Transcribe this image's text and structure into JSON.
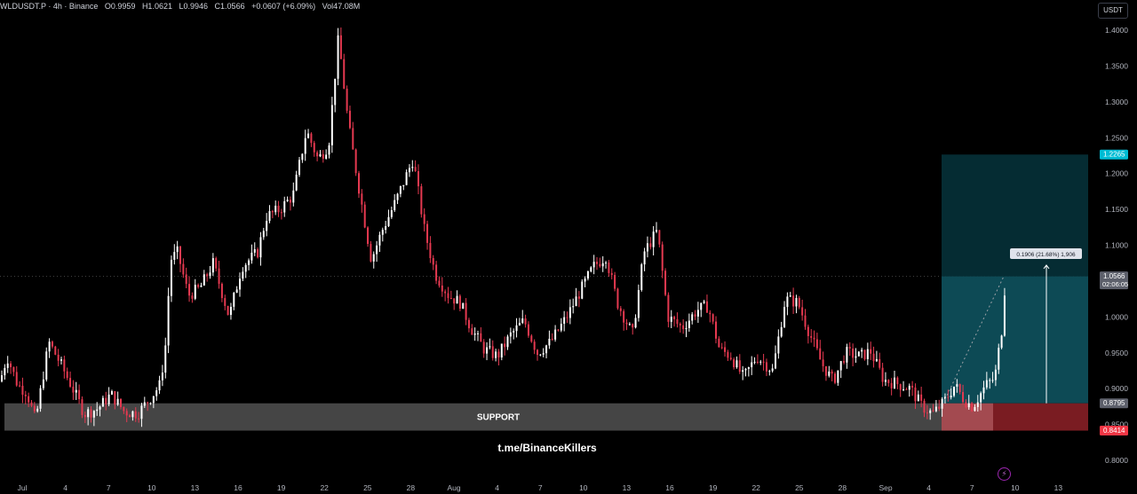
{
  "header": {
    "symbol": "WLDUSDT.P · 4h · Binance",
    "open": "O0.9959",
    "high": "H1.0621",
    "low": "L0.9946",
    "close": "C1.0566",
    "change": "+0.0607 (+6.09%)",
    "volume": "Vol47.08M"
  },
  "currency_button": "USDT",
  "support_label": "SUPPORT",
  "watermark": "t.me/BinanceKillers",
  "measure_label": "0.1906 (21.68%) 1,906",
  "countdown": "02:06:05",
  "flash_icon": "⚡",
  "colors": {
    "up": "#ffffff",
    "down": "#e53950",
    "profit_zone": "#0d4a55",
    "profit_zone_upper": "#052c33",
    "loss_zone": "#7a1c22",
    "support_band": "#4d4d4d",
    "target_tag": "#00bcd4",
    "stop_tag": "#f23645",
    "price_tag": "#5d606b"
  },
  "chart_data": {
    "type": "candlestick",
    "ylim": [
      0.7905,
      1.4055
    ],
    "y_ticks": [
      "1.4000",
      "1.3500",
      "1.3000",
      "1.2500",
      "1.2000",
      "1.1500",
      "1.1000",
      "1.0500",
      "1.0000",
      "0.9500",
      "0.9000",
      "0.8500",
      "0.8000"
    ],
    "x_ticks": [
      "Jul",
      "4",
      "7",
      "10",
      "13",
      "16",
      "19",
      "22",
      "25",
      "28",
      "Aug",
      "4",
      "7",
      "10",
      "13",
      "16",
      "19",
      "22",
      "25",
      "28",
      "Sep",
      "4",
      "7",
      "10",
      "13"
    ],
    "price_path": [
      [
        0,
        0.91
      ],
      [
        8,
        0.945
      ],
      [
        20,
        0.905
      ],
      [
        30,
        0.895
      ],
      [
        40,
        0.855
      ],
      [
        55,
        0.965
      ],
      [
        68,
        0.935
      ],
      [
        80,
        0.905
      ],
      [
        95,
        0.865
      ],
      [
        110,
        0.872
      ],
      [
        125,
        0.892
      ],
      [
        140,
        0.868
      ],
      [
        155,
        0.865
      ],
      [
        168,
        0.885
      ],
      [
        180,
        0.905
      ],
      [
        186,
        0.955
      ],
      [
        192,
        1.08
      ],
      [
        200,
        1.09
      ],
      [
        212,
        1.03
      ],
      [
        225,
        1.04
      ],
      [
        240,
        1.075
      ],
      [
        258,
        1.0
      ],
      [
        272,
        1.07
      ],
      [
        290,
        1.09
      ],
      [
        300,
        1.14
      ],
      [
        315,
        1.15
      ],
      [
        330,
        1.17
      ],
      [
        345,
        1.26
      ],
      [
        358,
        1.22
      ],
      [
        370,
        1.24
      ],
      [
        381,
        1.39
      ],
      [
        392,
        1.27
      ],
      [
        404,
        1.18
      ],
      [
        418,
        1.08
      ],
      [
        430,
        1.12
      ],
      [
        445,
        1.16
      ],
      [
        465,
        1.22
      ],
      [
        478,
        1.12
      ],
      [
        490,
        1.06
      ],
      [
        505,
        1.03
      ],
      [
        518,
        1.02
      ],
      [
        530,
        0.985
      ],
      [
        545,
        0.955
      ],
      [
        560,
        0.945
      ],
      [
        575,
        0.975
      ],
      [
        590,
        0.995
      ],
      [
        605,
        0.95
      ],
      [
        620,
        0.965
      ],
      [
        638,
        1.0
      ],
      [
        655,
        1.04
      ],
      [
        668,
        1.07
      ],
      [
        682,
        1.085
      ],
      [
        695,
        1.02
      ],
      [
        712,
        0.975
      ],
      [
        725,
        1.09
      ],
      [
        740,
        1.12
      ],
      [
        752,
        1.0
      ],
      [
        768,
        0.985
      ],
      [
        785,
        1.01
      ],
      [
        797,
        1.015
      ],
      [
        810,
        0.955
      ],
      [
        823,
        0.945
      ],
      [
        837,
        0.915
      ],
      [
        852,
        0.945
      ],
      [
        870,
        0.925
      ],
      [
        884,
        1.025
      ],
      [
        898,
        1.02
      ],
      [
        912,
        0.975
      ],
      [
        925,
        0.935
      ],
      [
        938,
        0.91
      ],
      [
        952,
        0.95
      ],
      [
        968,
        0.945
      ],
      [
        980,
        0.952
      ],
      [
        995,
        0.912
      ],
      [
        1010,
        0.907
      ],
      [
        1025,
        0.9
      ],
      [
        1038,
        0.875
      ],
      [
        1050,
        0.865
      ],
      [
        1062,
        0.88
      ],
      [
        1075,
        0.905
      ],
      [
        1085,
        0.885
      ],
      [
        1095,
        0.875
      ],
      [
        1110,
        0.905
      ],
      [
        1120,
        0.915
      ],
      [
        1128,
        0.985
      ],
      [
        1132,
        1.0566
      ]
    ],
    "current_price": 1.0566,
    "current_price_label": "1.0566",
    "target_price": 1.2265,
    "target_label": "1.2265",
    "entry_price": 0.8795,
    "entry_label": "0.8795",
    "stop_price": 0.8414,
    "stop_label": "0.8414",
    "support_zone": [
      0.8414,
      0.8795
    ]
  }
}
